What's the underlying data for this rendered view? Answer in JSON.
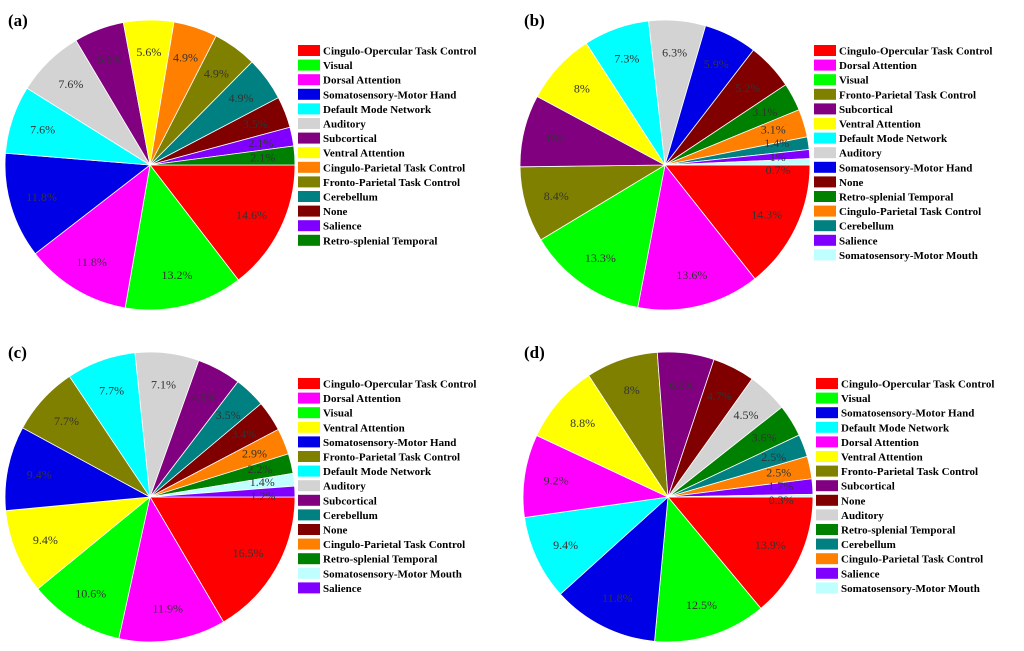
{
  "colors": {
    "Cingulo-Opercular Task Control": "#ff0000",
    "Visual": "#00ff00",
    "Dorsal Attention": "#ff00ff",
    "Somatosensory-Motor Hand": "#0000e6",
    "Default Mode Network": "#00ffff",
    "Auditory": "#d3d3d3",
    "Subcortical": "#800080",
    "Ventral Attention": "#ffff00",
    "Cingulo-Parietal Task Control": "#ff8000",
    "Fronto-Parietal Task Control": "#808000",
    "Cerebellum": "#008080",
    "None": "#800000",
    "Salience": "#8000ff",
    "Retro-splenial Temporal": "#008000",
    "Somatosensory-Motor Mouth": "#bfffff"
  },
  "chart_data": [
    {
      "type": "pie",
      "title": "(a)",
      "legend": "right",
      "categories": [
        "Cingulo-Opercular Task Control",
        "Visual",
        "Dorsal Attention",
        "Somatosensory-Motor Hand",
        "Default Mode Network",
        "Auditory",
        "Subcortical",
        "Ventral Attention",
        "Cingulo-Parietal Task Control",
        "Fronto-Parietal Task Control",
        "Cerebellum",
        "None",
        "Salience",
        "Retro-splenial Temporal"
      ],
      "values": [
        14.6,
        13.2,
        11.8,
        11.8,
        7.6,
        7.6,
        5.6,
        5.6,
        4.9,
        4.9,
        4.9,
        3.5,
        2.1,
        2.1
      ],
      "labels": [
        "14.6%",
        "13.2%",
        "11.8%",
        "11.8%",
        "7.6%",
        "7.6%",
        "5.6%",
        "5.6%",
        "4.9%",
        "4.9%",
        "4.9%",
        "3.5%",
        "2.1%",
        "2.1%"
      ]
    },
    {
      "type": "pie",
      "title": "(b)",
      "legend": "right",
      "categories": [
        "Cingulo-Opercular Task Control",
        "Dorsal Attention",
        "Visual",
        "Fronto-Parietal Task Control",
        "Subcortical",
        "Ventral Attention",
        "Default Mode Network",
        "Auditory",
        "Somatosensory-Motor Hand",
        "None",
        "Retro-splenial Temporal",
        "Cingulo-Parietal Task Control",
        "Cerebellum",
        "Salience",
        "Somatosensory-Motor Mouth"
      ],
      "values": [
        14.3,
        13.6,
        13.3,
        8.4,
        8,
        8,
        7.3,
        6.3,
        5.9,
        5.2,
        3.1,
        3.1,
        1.4,
        1,
        0.7
      ],
      "labels": [
        "14.3%",
        "13.6%",
        "13.3%",
        "8.4%",
        "8%",
        "8%",
        "7.3%",
        "6.3%",
        "5.9%",
        "5.2%",
        "3.1%",
        "3.1%",
        "1.4%",
        "1%",
        "0.7%"
      ]
    },
    {
      "type": "pie",
      "title": "(c)",
      "legend": "right",
      "categories": [
        "Cingulo-Opercular Task Control",
        "Dorsal Attention",
        "Visual",
        "Ventral Attention",
        "Somatosensory-Motor Hand",
        "Fronto-Parietal Task Control",
        "Default Mode Network",
        "Auditory",
        "Subcortical",
        "Cerebellum",
        "None",
        "Cingulo-Parietal Task Control",
        "Retro-splenial Temporal",
        "Somatosensory-Motor Mouth",
        "Salience"
      ],
      "values": [
        16.5,
        11.9,
        10.6,
        9.4,
        9.4,
        7.7,
        7.7,
        7.1,
        4.9,
        3.5,
        3.4,
        2.9,
        2.2,
        1.4,
        1.2
      ],
      "labels": [
        "16.5%",
        "11.9%",
        "10.6%",
        "9.4%",
        "9.4%",
        "7.7%",
        "7.7%",
        "7.1%",
        "4.9%",
        "3.5%",
        "3.4%",
        "2.9%",
        "2.2%",
        "1.4%",
        "1.2%"
      ]
    },
    {
      "type": "pie",
      "title": "(d)",
      "legend": "right",
      "categories": [
        "Cingulo-Opercular Task Control",
        "Visual",
        "Somatosensory-Motor Hand",
        "Default Mode Network",
        "Dorsal Attention",
        "Ventral Attention",
        "Fronto-Parietal Task Control",
        "Subcortical",
        "None",
        "Auditory",
        "Retro-splenial Temporal",
        "Cerebellum",
        "Cingulo-Parietal Task Control",
        "Salience",
        "Somatosensory-Motor Mouth"
      ],
      "values": [
        13.9,
        12.5,
        11.8,
        9.4,
        9.2,
        8.8,
        8,
        6.3,
        4.7,
        4.5,
        3.6,
        2.5,
        2.5,
        1.7,
        0.3
      ],
      "labels": [
        "13.9%",
        "12.5%",
        "11.8%",
        "9.4%",
        "9.2%",
        "8.8%",
        "8%",
        "6.3%",
        "4.7%",
        "4.5%",
        "3.6%",
        "2.5%",
        "2.5%",
        "1.7%",
        "0.3%"
      ]
    }
  ]
}
